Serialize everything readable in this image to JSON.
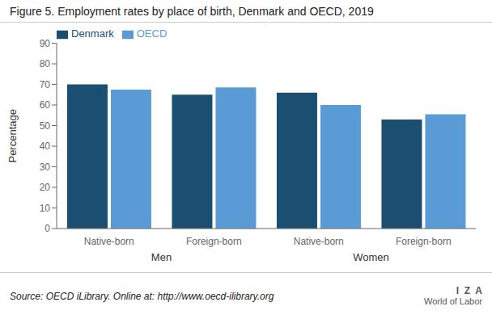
{
  "chart_data": {
    "type": "bar",
    "title": "Figure 5. Employment rates by place of birth, Denmark and OECD, 2019",
    "ylabel": "Percentage",
    "categories": [
      "Native-born",
      "Foreign-born",
      "Native-born",
      "Foreign-born"
    ],
    "category_groups": [
      "Men",
      "Men",
      "Women",
      "Women"
    ],
    "series": [
      {
        "name": "Denmark",
        "color": "#1B4F72",
        "values": [
          70.0,
          65.0,
          66.0,
          53.0
        ]
      },
      {
        "name": "OECD",
        "color": "#5B9BD5",
        "values": [
          67.5,
          68.5,
          60.0,
          55.5
        ]
      }
    ],
    "ylim": [
      0,
      90
    ],
    "yticks": [
      0,
      10,
      20,
      30,
      40,
      50,
      60,
      70,
      80,
      90
    ],
    "grid": false,
    "legend": "upper left",
    "annotations": [
      "Source: OECD iLibrary. Online at: http://www.oecd-ilibrary.org",
      "I  Z  A",
      "World of Labor"
    ]
  }
}
